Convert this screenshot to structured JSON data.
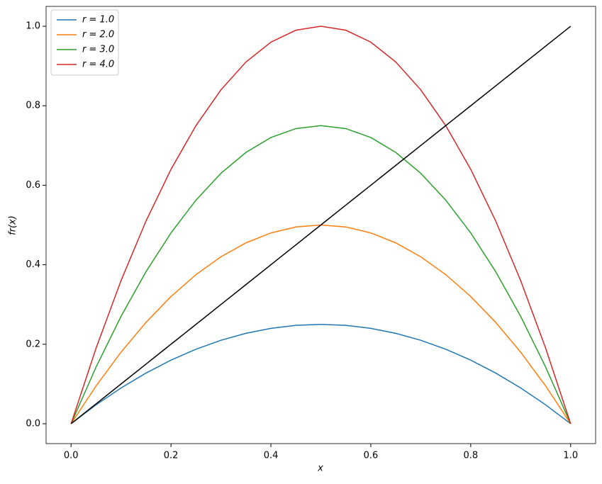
{
  "chart_data": {
    "type": "line",
    "xlabel": "x",
    "ylabel": "fr(x)",
    "x": [
      0,
      0.05,
      0.1,
      0.15,
      0.2,
      0.25,
      0.3,
      0.35,
      0.4,
      0.45,
      0.5,
      0.55,
      0.6,
      0.65,
      0.7,
      0.75,
      0.8,
      0.85,
      0.9,
      0.95,
      1
    ],
    "series": [
      {
        "name": "r = 1.0",
        "color": "#1f77b4",
        "values": [
          0,
          0.0475,
          0.09,
          0.1275,
          0.16,
          0.1875,
          0.21,
          0.2275,
          0.24,
          0.2475,
          0.25,
          0.2475,
          0.24,
          0.2275,
          0.21,
          0.1875,
          0.16,
          0.1275,
          0.09,
          0.0475,
          0
        ]
      },
      {
        "name": "r = 2.0",
        "color": "#ff7f0e",
        "values": [
          0,
          0.095,
          0.18,
          0.255,
          0.32,
          0.375,
          0.42,
          0.455,
          0.48,
          0.495,
          0.5,
          0.495,
          0.48,
          0.455,
          0.42,
          0.375,
          0.32,
          0.255,
          0.18,
          0.095,
          0
        ]
      },
      {
        "name": "r = 3.0",
        "color": "#2ca02c",
        "values": [
          0,
          0.1425,
          0.27,
          0.3825,
          0.48,
          0.5625,
          0.63,
          0.6825,
          0.72,
          0.7425,
          0.75,
          0.7425,
          0.72,
          0.6825,
          0.63,
          0.5625,
          0.48,
          0.3825,
          0.27,
          0.1425,
          0
        ]
      },
      {
        "name": "r = 4.0",
        "color": "#d62728",
        "values": [
          0,
          0.19,
          0.36,
          0.51,
          0.64,
          0.75,
          0.84,
          0.91,
          0.96,
          0.99,
          1,
          0.99,
          0.96,
          0.91,
          0.84,
          0.75,
          0.64,
          0.51,
          0.36,
          0.19,
          0
        ]
      },
      {
        "color": "#000000",
        "values": [
          0,
          0.05,
          0.1,
          0.15,
          0.2,
          0.25,
          0.3,
          0.35,
          0.4,
          0.45,
          0.5,
          0.55,
          0.6,
          0.65,
          0.7,
          0.75,
          0.8,
          0.85,
          0.9,
          0.95,
          1
        ]
      }
    ],
    "xlim": [
      -0.05,
      1.05
    ],
    "ylim": [
      -0.05,
      1.05
    ],
    "xticks": [
      {
        "value": 0,
        "label": "0.0"
      },
      0.2,
      0.4,
      0.6,
      0.8,
      {
        "value": 1,
        "label": "1.0"
      }
    ],
    "yticks": [
      {
        "value": 0,
        "label": "0.0"
      },
      0.2,
      0.4,
      0.6,
      0.8,
      {
        "value": 1,
        "label": "1.0"
      }
    ],
    "legend": "upper left"
  }
}
